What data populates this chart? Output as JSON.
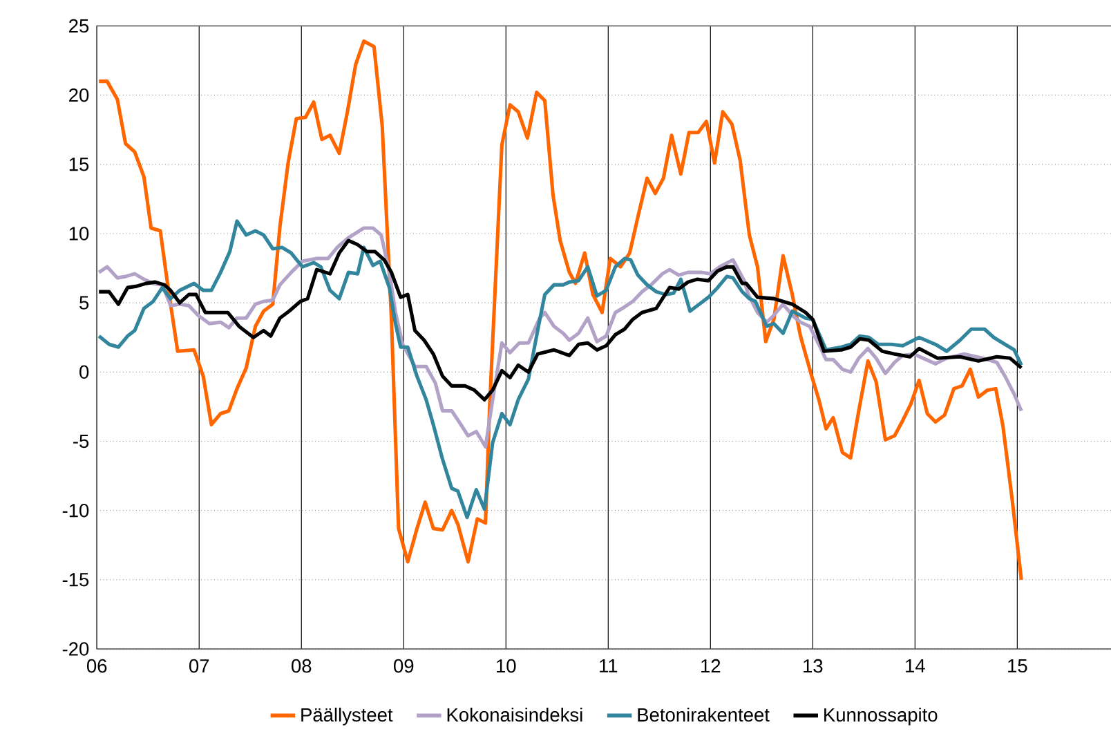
{
  "chart_data": {
    "type": "line",
    "xlim": [
      2006,
      2015.93
    ],
    "ylim": [
      -20,
      25
    ],
    "xticks": [
      {
        "value": 2006,
        "label": "06"
      },
      {
        "value": 2007,
        "label": "07"
      },
      {
        "value": 2008,
        "label": "08"
      },
      {
        "value": 2009,
        "label": "09"
      },
      {
        "value": 2010,
        "label": "10"
      },
      {
        "value": 2011,
        "label": "11"
      },
      {
        "value": 2012,
        "label": "12"
      },
      {
        "value": 2013,
        "label": "13"
      },
      {
        "value": 2014,
        "label": "14"
      },
      {
        "value": 2015,
        "label": "15"
      }
    ],
    "yticks": [
      -20,
      -15,
      -10,
      -5,
      0,
      5,
      10,
      15,
      20,
      25
    ],
    "grid": true,
    "legend": "bottom",
    "series": [
      {
        "name": "Päällysteet",
        "color": "#ff6600",
        "x": [
          2006.02,
          2006.1,
          2006.2,
          2006.28,
          2006.37,
          2006.46,
          2006.53,
          2006.62,
          2006.7,
          2006.79,
          2006.95,
          2007.04,
          2007.12,
          2007.21,
          2007.29,
          2007.37,
          2007.46,
          2007.55,
          2007.63,
          2007.72,
          2007.79,
          2007.87,
          2007.95,
          2008.04,
          2008.12,
          2008.2,
          2008.28,
          2008.37,
          2008.45,
          2008.53,
          2008.61,
          2008.71,
          2008.79,
          2008.88,
          2008.95,
          2009.04,
          2009.13,
          2009.21,
          2009.29,
          2009.38,
          2009.47,
          2009.53,
          2009.63,
          2009.72,
          2009.8,
          2009.84,
          2009.96,
          2010.04,
          2010.12,
          2010.21,
          2010.3,
          2010.38,
          2010.46,
          2010.53,
          2010.62,
          2010.68,
          2010.77,
          2010.85,
          2010.94,
          2011.02,
          2011.12,
          2011.21,
          2011.29,
          2011.38,
          2011.46,
          2011.54,
          2011.62,
          2011.71,
          2011.79,
          2011.88,
          2011.96,
          2012.04,
          2012.12,
          2012.21,
          2012.29,
          2012.38,
          2012.46,
          2012.54,
          2012.62,
          2012.71,
          2012.8,
          2012.88,
          2012.99,
          2013.06,
          2013.13,
          2013.2,
          2013.29,
          2013.37,
          2013.45,
          2013.54,
          2013.62,
          2013.71,
          2013.8,
          2013.88,
          2013.96,
          2014.04,
          2014.12,
          2014.2,
          2014.29,
          2014.38,
          2014.46,
          2014.54,
          2014.62,
          2014.71,
          2014.79,
          2014.86,
          2014.95,
          2015.04
        ],
        "values": [
          21.0,
          21.0,
          19.7,
          16.5,
          15.9,
          14.1,
          10.4,
          10.2,
          5.9,
          1.5,
          1.6,
          -0.3,
          -3.8,
          -3.0,
          -2.8,
          -1.2,
          0.3,
          3.3,
          4.4,
          4.9,
          10.5,
          15.1,
          18.3,
          18.4,
          19.5,
          16.8,
          17.1,
          15.8,
          18.8,
          22.2,
          23.9,
          23.5,
          17.8,
          3.9,
          -11.3,
          -13.7,
          -11.3,
          -9.4,
          -11.3,
          -11.4,
          -10.0,
          -11.0,
          -13.7,
          -10.6,
          -10.9,
          -2.6,
          16.4,
          19.3,
          18.8,
          16.9,
          20.2,
          19.6,
          12.8,
          9.5,
          7.2,
          6.4,
          8.6,
          5.6,
          4.3,
          8.2,
          7.6,
          8.6,
          11.2,
          14.0,
          12.9,
          14.0,
          17.1,
          14.3,
          17.3,
          17.3,
          18.1,
          15.1,
          18.8,
          17.9,
          15.3,
          9.9,
          7.6,
          2.2,
          3.8,
          8.4,
          5.6,
          2.6,
          -0.3,
          -2.0,
          -4.1,
          -3.3,
          -5.8,
          -6.2,
          -2.8,
          0.8,
          -0.7,
          -4.9,
          -4.6,
          -3.5,
          -2.3,
          -0.6,
          -3.0,
          -3.6,
          -3.1,
          -1.2,
          -1.0,
          0.2,
          -1.8,
          -1.3,
          -1.2,
          -3.9,
          -9.2,
          -15.0
        ]
      },
      {
        "name": "Kokonaisindeksi",
        "color": "#b3a2c7",
        "x": [
          2006.02,
          2006.1,
          2006.2,
          2006.28,
          2006.37,
          2006.46,
          2006.55,
          2006.64,
          2006.72,
          2006.81,
          2006.9,
          2006.99,
          2007.1,
          2007.21,
          2007.29,
          2007.37,
          2007.46,
          2007.55,
          2007.63,
          2007.72,
          2007.79,
          2007.9,
          2008.01,
          2008.15,
          2008.26,
          2008.35,
          2008.46,
          2008.61,
          2008.7,
          2008.78,
          2008.86,
          2008.92,
          2008.99,
          2009.11,
          2009.22,
          2009.31,
          2009.38,
          2009.47,
          2009.56,
          2009.63,
          2009.71,
          2009.8,
          2009.87,
          2009.96,
          2010.04,
          2010.13,
          2010.22,
          2010.33,
          2010.38,
          2010.47,
          2010.56,
          2010.62,
          2010.71,
          2010.8,
          2010.89,
          2010.98,
          2011.07,
          2011.16,
          2011.24,
          2011.33,
          2011.42,
          2011.53,
          2011.6,
          2011.69,
          2011.78,
          2011.91,
          2012.0,
          2012.09,
          2012.22,
          2012.33,
          2012.37,
          2012.46,
          2012.55,
          2012.62,
          2012.71,
          2012.8,
          2012.88,
          2012.97,
          2013.06,
          2013.13,
          2013.2,
          2013.29,
          2013.37,
          2013.45,
          2013.54,
          2013.62,
          2013.71,
          2013.8,
          2013.88,
          2013.99,
          2014.08,
          2014.2,
          2014.31,
          2014.48,
          2014.66,
          2014.8,
          2014.88,
          2014.97,
          2015.04
        ],
        "values": [
          7.2,
          7.6,
          6.8,
          6.9,
          7.1,
          6.7,
          6.4,
          6.3,
          4.8,
          4.9,
          4.8,
          4.1,
          3.5,
          3.6,
          3.2,
          3.9,
          3.9,
          4.9,
          5.1,
          5.2,
          6.3,
          7.2,
          8.0,
          8.2,
          8.2,
          9.0,
          9.7,
          10.4,
          10.4,
          9.9,
          7.2,
          4.3,
          2.0,
          0.4,
          0.4,
          -0.8,
          -2.8,
          -2.8,
          -3.8,
          -4.6,
          -4.3,
          -5.4,
          -2.0,
          2.1,
          1.4,
          2.1,
          2.1,
          3.9,
          4.3,
          3.3,
          2.8,
          2.3,
          2.8,
          3.9,
          2.2,
          2.6,
          4.3,
          4.7,
          5.1,
          5.8,
          6.3,
          7.1,
          7.4,
          7.0,
          7.2,
          7.2,
          7.1,
          7.6,
          8.1,
          6.6,
          5.6,
          4.3,
          3.6,
          4.1,
          4.9,
          4.1,
          3.6,
          3.3,
          2.0,
          0.9,
          0.9,
          0.2,
          0.0,
          1.0,
          1.7,
          1.0,
          -0.1,
          0.7,
          1.2,
          1.3,
          1.0,
          0.6,
          1.0,
          1.3,
          1.0,
          0.7,
          -0.3,
          -1.6,
          -2.8
        ]
      },
      {
        "name": "Betonirakenteet",
        "color": "#31859c",
        "x": [
          2006.02,
          2006.12,
          2006.21,
          2006.3,
          2006.37,
          2006.46,
          2006.55,
          2006.64,
          2006.72,
          2006.81,
          2006.95,
          2007.04,
          2007.12,
          2007.21,
          2007.3,
          2007.37,
          2007.46,
          2007.55,
          2007.63,
          2007.72,
          2007.81,
          2007.9,
          2008.01,
          2008.12,
          2008.19,
          2008.28,
          2008.37,
          2008.46,
          2008.55,
          2008.61,
          2008.7,
          2008.77,
          2008.86,
          2008.92,
          2008.97,
          2009.04,
          2009.13,
          2009.22,
          2009.29,
          2009.38,
          2009.47,
          2009.53,
          2009.62,
          2009.71,
          2009.79,
          2009.87,
          2009.96,
          2010.04,
          2010.12,
          2010.22,
          2010.31,
          2010.38,
          2010.47,
          2010.56,
          2010.62,
          2010.71,
          2010.8,
          2010.89,
          2010.98,
          2011.07,
          2011.16,
          2011.22,
          2011.29,
          2011.38,
          2011.47,
          2011.56,
          2011.64,
          2011.71,
          2011.8,
          2011.89,
          2011.98,
          2012.07,
          2012.16,
          2012.22,
          2012.31,
          2012.38,
          2012.44,
          2012.55,
          2012.62,
          2012.71,
          2012.8,
          2012.93,
          2013.0,
          2013.13,
          2013.28,
          2013.37,
          2013.46,
          2013.55,
          2013.64,
          2013.77,
          2013.88,
          2014.04,
          2014.2,
          2014.31,
          2014.44,
          2014.55,
          2014.68,
          2014.77,
          2014.88,
          2014.97,
          2015.04
        ],
        "values": [
          2.6,
          2.0,
          1.8,
          2.6,
          3.0,
          4.6,
          5.1,
          6.1,
          5.3,
          5.9,
          6.4,
          5.9,
          5.9,
          7.2,
          8.7,
          10.9,
          9.9,
          10.2,
          9.9,
          8.9,
          9.0,
          8.6,
          7.6,
          7.9,
          7.6,
          5.9,
          5.3,
          7.2,
          7.1,
          9.0,
          7.7,
          8.0,
          6.1,
          3.5,
          1.8,
          1.8,
          -0.3,
          -2.0,
          -3.8,
          -6.3,
          -8.4,
          -8.6,
          -10.5,
          -8.5,
          -9.9,
          -5.1,
          -3.0,
          -3.8,
          -2.0,
          -0.5,
          3.0,
          5.6,
          6.3,
          6.3,
          6.5,
          6.6,
          7.6,
          5.5,
          5.9,
          7.6,
          8.2,
          8.1,
          7.0,
          6.3,
          5.8,
          5.6,
          5.7,
          6.7,
          4.4,
          4.9,
          5.4,
          6.1,
          6.9,
          6.8,
          5.8,
          5.3,
          5.1,
          3.3,
          3.5,
          2.8,
          4.4,
          3.9,
          3.8,
          1.6,
          1.8,
          2.0,
          2.6,
          2.5,
          2.0,
          2.0,
          1.9,
          2.5,
          2.0,
          1.5,
          2.3,
          3.1,
          3.1,
          2.5,
          2.0,
          1.6,
          0.5
        ]
      },
      {
        "name": "Kunnossapito",
        "color": "#000000",
        "x": [
          2006.02,
          2006.12,
          2006.21,
          2006.3,
          2006.39,
          2006.48,
          2006.57,
          2006.66,
          2006.72,
          2006.81,
          2006.9,
          2006.97,
          2007.06,
          2007.19,
          2007.28,
          2007.39,
          2007.53,
          2007.63,
          2007.7,
          2007.79,
          2007.88,
          2007.99,
          2008.06,
          2008.15,
          2008.28,
          2008.37,
          2008.46,
          2008.55,
          2008.64,
          2008.72,
          2008.81,
          2008.88,
          2008.97,
          2009.04,
          2009.11,
          2009.2,
          2009.29,
          2009.38,
          2009.47,
          2009.6,
          2009.69,
          2009.79,
          2009.87,
          2009.96,
          2010.04,
          2010.12,
          2010.22,
          2010.31,
          2010.47,
          2010.62,
          2010.71,
          2010.8,
          2010.89,
          2010.98,
          2011.07,
          2011.16,
          2011.24,
          2011.33,
          2011.47,
          2011.6,
          2011.69,
          2011.78,
          2011.87,
          2011.98,
          2012.07,
          2012.16,
          2012.22,
          2012.31,
          2012.35,
          2012.46,
          2012.62,
          2012.8,
          2012.93,
          2013.0,
          2013.11,
          2013.28,
          2013.37,
          2013.46,
          2013.55,
          2013.68,
          2013.8,
          2013.95,
          2014.04,
          2014.22,
          2014.44,
          2014.62,
          2014.8,
          2014.93,
          2015.04
        ],
        "values": [
          5.8,
          5.8,
          4.9,
          6.1,
          6.2,
          6.4,
          6.5,
          6.3,
          5.9,
          5.0,
          5.6,
          5.6,
          4.3,
          4.3,
          4.3,
          3.3,
          2.5,
          3.0,
          2.6,
          3.9,
          4.4,
          5.1,
          5.3,
          7.4,
          7.1,
          8.6,
          9.5,
          9.2,
          8.7,
          8.7,
          8.1,
          7.2,
          5.4,
          5.6,
          3.0,
          2.3,
          1.3,
          -0.3,
          -1.0,
          -1.0,
          -1.3,
          -2.0,
          -1.3,
          0.1,
          -0.4,
          0.5,
          0.0,
          1.3,
          1.6,
          1.2,
          2.0,
          2.1,
          1.6,
          1.9,
          2.7,
          3.1,
          3.8,
          4.3,
          4.6,
          6.1,
          6.0,
          6.5,
          6.7,
          6.6,
          7.3,
          7.6,
          7.6,
          6.4,
          6.4,
          5.4,
          5.3,
          4.9,
          4.3,
          3.8,
          1.5,
          1.6,
          1.8,
          2.4,
          2.3,
          1.5,
          1.3,
          1.1,
          1.7,
          1.0,
          1.1,
          0.8,
          1.1,
          1.0,
          0.3
        ]
      }
    ]
  }
}
